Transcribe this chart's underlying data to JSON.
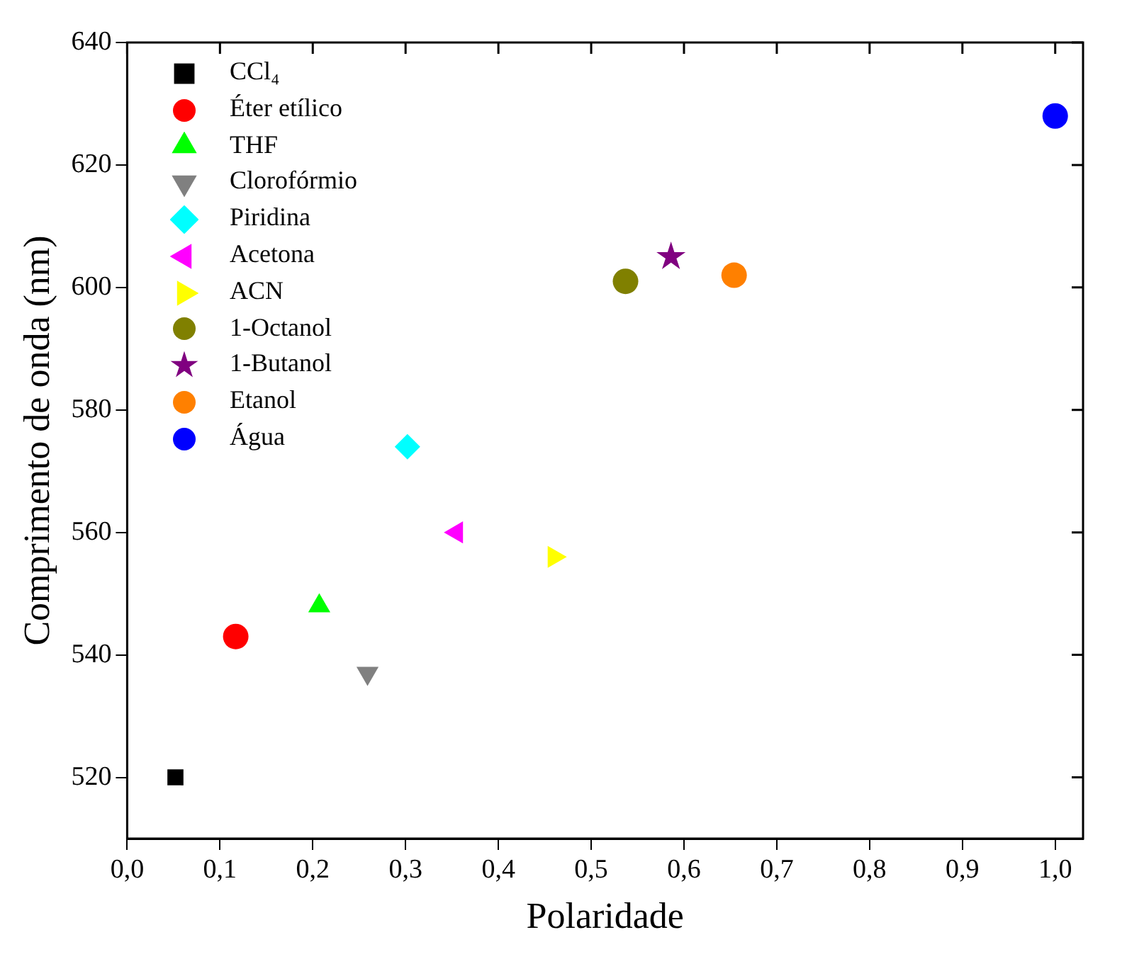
{
  "chart_data": {
    "type": "scatter",
    "xlabel": "Polaridade",
    "ylabel": "Comprimento de onda (nm)",
    "xlim": [
      0,
      1.03
    ],
    "ylim": [
      510,
      640
    ],
    "xticks": [
      {
        "value": 0,
        "label": "0,0"
      },
      {
        "value": 0.1,
        "label": "0,1"
      },
      {
        "value": 0.2,
        "label": "0,2"
      },
      {
        "value": 0.3,
        "label": "0,3"
      },
      {
        "value": 0.4,
        "label": "0,4"
      },
      {
        "value": 0.5,
        "label": "0,5"
      },
      {
        "value": 0.6,
        "label": "0,6"
      },
      {
        "value": 0.7,
        "label": "0,7"
      },
      {
        "value": 0.8,
        "label": "0,8"
      },
      {
        "value": 0.9,
        "label": "0,9"
      },
      {
        "value": 1,
        "label": "1,0"
      }
    ],
    "yticks": [
      520,
      540,
      560,
      580,
      600,
      620,
      640
    ],
    "legend": "top left",
    "grid": false,
    "series": [
      {
        "name": "CCl₄",
        "color": "#000000",
        "marker": "square",
        "x": [
          0.052
        ],
        "values": [
          520
        ]
      },
      {
        "name": "Éter etílico",
        "color": "#ff0000",
        "marker": "circle",
        "x": [
          0.117
        ],
        "values": [
          543
        ]
      },
      {
        "name": "THF",
        "color": "#00ff00",
        "marker": "triangle",
        "x": [
          0.207
        ],
        "values": [
          548
        ]
      },
      {
        "name": "Clorofórmio",
        "color": "#808080",
        "marker": "triangle-down",
        "x": [
          0.259
        ],
        "values": [
          537
        ]
      },
      {
        "name": "Piridina",
        "color": "#00ffff",
        "marker": "diamond",
        "x": [
          0.302
        ],
        "values": [
          574
        ]
      },
      {
        "name": "Acetona",
        "color": "#ff00ff",
        "marker": "triangle-left",
        "x": [
          0.355
        ],
        "values": [
          560
        ]
      },
      {
        "name": "ACN",
        "color": "#ffff00",
        "marker": "triangle-right",
        "x": [
          0.46
        ],
        "values": [
          556
        ]
      },
      {
        "name": "1-Octanol",
        "color": "#808000",
        "x": [
          0.537
        ],
        "values": [
          601
        ]
      },
      {
        "name": "1-Butanol",
        "color": "#800080",
        "marker": "star",
        "x": [
          0.586
        ],
        "values": [
          605
        ]
      },
      {
        "name": "Etanol",
        "color": "#ff8000",
        "x": [
          0.654
        ],
        "values": [
          602
        ]
      },
      {
        "name": "Água",
        "color": "#0000ff",
        "marker": "circle",
        "x": [
          1
        ],
        "values": [
          628
        ]
      }
    ]
  }
}
